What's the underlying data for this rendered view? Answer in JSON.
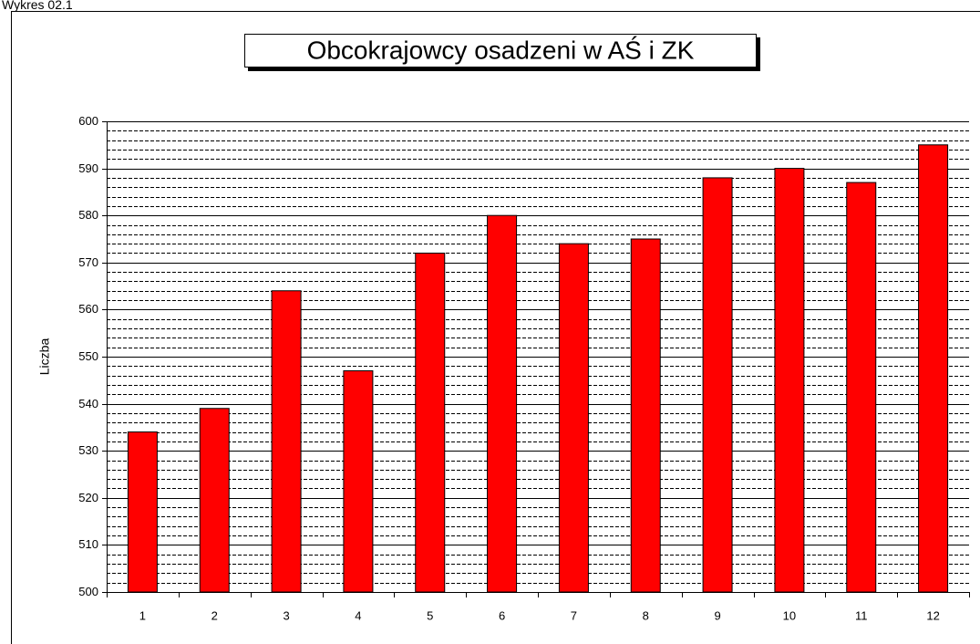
{
  "caption": "Wykres 02.1",
  "chart_data": {
    "type": "bar",
    "title": "Obcokrajowcy osadzeni w AŚ i ZK",
    "y_label": "Liczba",
    "categories": [
      "1",
      "2",
      "3",
      "4",
      "5",
      "6",
      "7",
      "8",
      "9",
      "10",
      "11",
      "12"
    ],
    "values": [
      534,
      539,
      564,
      547,
      572,
      580,
      574,
      575,
      588,
      590,
      587,
      595
    ],
    "color": "#ff0000",
    "ylim": [
      500,
      600
    ],
    "yticks": [
      500,
      510,
      520,
      530,
      540,
      550,
      560,
      570,
      580,
      590,
      600
    ],
    "grid": true,
    "minor_grid_step": 2
  }
}
